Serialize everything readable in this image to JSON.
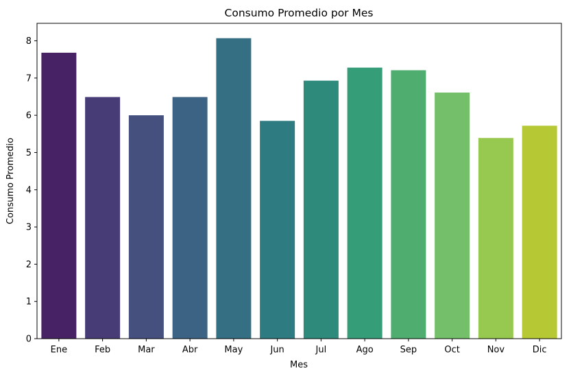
{
  "chart_data": {
    "type": "bar",
    "title": "Consumo Promedio por Mes",
    "xlabel": "Mes",
    "ylabel": "Consumo Promedio",
    "categories": [
      "Ene",
      "Feb",
      "Mar",
      "Abr",
      "May",
      "Jun",
      "Jul",
      "Ago",
      "Sep",
      "Oct",
      "Nov",
      "Dic"
    ],
    "values": [
      7.68,
      6.49,
      6.0,
      6.49,
      8.07,
      5.85,
      6.93,
      7.28,
      7.21,
      6.61,
      5.39,
      5.72
    ],
    "colors": [
      "#472264",
      "#473c76",
      "#45507f",
      "#3d6384",
      "#356f83",
      "#2e7c82",
      "#2e8b7b",
      "#369d79",
      "#4fad6f",
      "#74bf6a",
      "#97c84f",
      "#b6c834"
    ],
    "ylim": [
      0,
      8.47
    ],
    "yticks": [
      0,
      1,
      2,
      3,
      4,
      5,
      6,
      7,
      8
    ],
    "grid": false,
    "legend": "none"
  }
}
